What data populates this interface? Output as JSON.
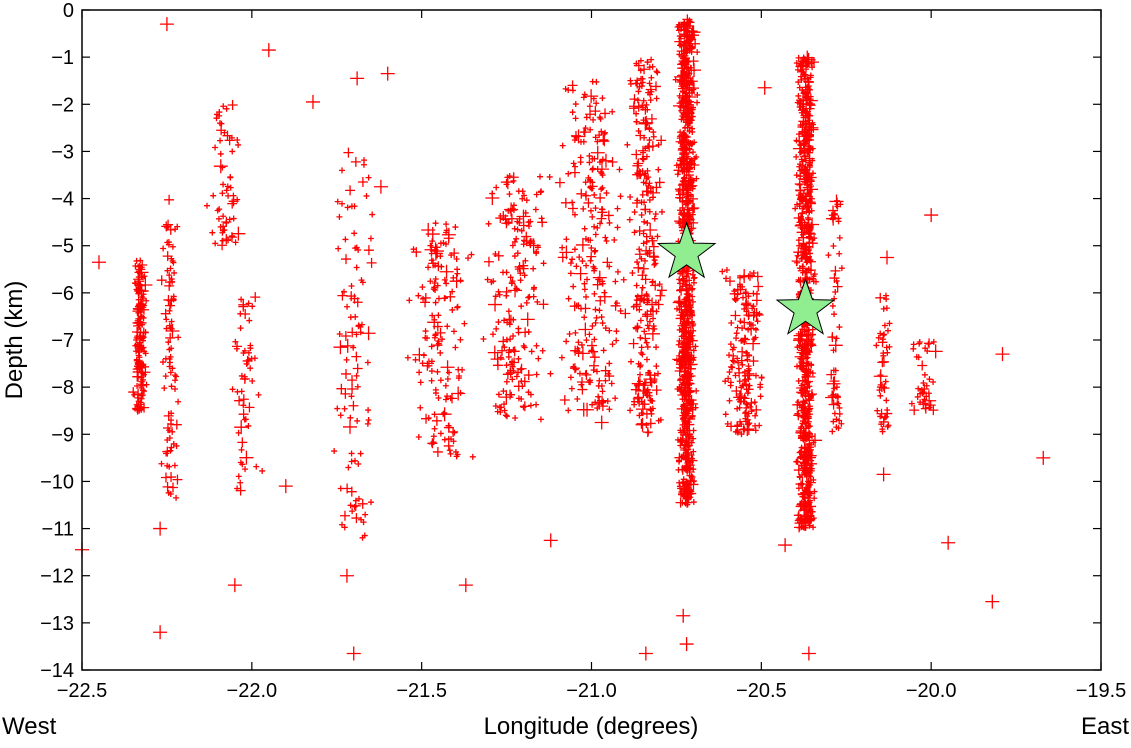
{
  "chart_data": {
    "type": "scatter",
    "title": "",
    "xlabel": "Longitude (degrees)",
    "ylabel": "Depth (km)",
    "xlim": [
      -22.5,
      -19.5
    ],
    "ylim": [
      -14,
      0
    ],
    "x_ticks": [
      -22.5,
      -22.0,
      -21.5,
      -21.0,
      -20.5,
      -20.0,
      -19.5
    ],
    "x_tick_labels": [
      "−22.5",
      "−22.0",
      "−21.5",
      "−21.0",
      "−20.5",
      "−20.0",
      "−19.5"
    ],
    "y_ticks": [
      0,
      -1,
      -2,
      -3,
      -4,
      -5,
      -6,
      -7,
      -8,
      -9,
      -10,
      -11,
      -12,
      -13,
      -14
    ],
    "y_tick_labels": [
      "0",
      "−1",
      "−2",
      "−3",
      "−4",
      "−5",
      "−6",
      "−7",
      "−8",
      "−9",
      "−10",
      "−11",
      "−12",
      "−13",
      "−14"
    ],
    "direction_labels": {
      "west": "West",
      "east": "East"
    },
    "grid": false,
    "legend": "none",
    "series": [
      {
        "marker": "plus",
        "color": "#ff0000",
        "clusters": [
          {
            "x": -22.33,
            "x_spread": 0.025,
            "y_min": -8.5,
            "y_max": -5.3,
            "count": 160
          },
          {
            "x": -22.24,
            "x_spread": 0.03,
            "y_min": -10.4,
            "y_max": -4.0,
            "count": 90
          },
          {
            "x": -22.08,
            "x_spread": 0.06,
            "y_min": -5.0,
            "y_max": -2.0,
            "count": 60
          },
          {
            "x": -22.02,
            "x_spread": 0.06,
            "y_min": -10.2,
            "y_max": -6.0,
            "count": 55
          },
          {
            "x": -21.7,
            "x_spread": 0.08,
            "y_min": -11.5,
            "y_max": -3.0,
            "count": 100
          },
          {
            "x": -21.45,
            "x_spread": 0.12,
            "y_min": -9.5,
            "y_max": -4.5,
            "count": 150
          },
          {
            "x": -21.22,
            "x_spread": 0.12,
            "y_min": -8.8,
            "y_max": -3.5,
            "count": 190
          },
          {
            "x": -21.0,
            "x_spread": 0.12,
            "y_min": -8.5,
            "y_max": -1.5,
            "count": 240
          },
          {
            "x": -20.84,
            "x_spread": 0.06,
            "y_min": -9.0,
            "y_max": -1.0,
            "count": 260
          },
          {
            "x": -20.72,
            "x_spread": 0.035,
            "y_min": -10.5,
            "y_max": -0.2,
            "count": 900
          },
          {
            "x": -20.55,
            "x_spread": 0.08,
            "y_min": -9.0,
            "y_max": -5.5,
            "count": 170
          },
          {
            "x": -20.37,
            "x_spread": 0.035,
            "y_min": -11.0,
            "y_max": -1.0,
            "count": 800
          },
          {
            "x": -20.28,
            "x_spread": 0.03,
            "y_min": -9.0,
            "y_max": -4.0,
            "count": 60
          },
          {
            "x": -20.14,
            "x_spread": 0.03,
            "y_min": -9.0,
            "y_max": -6.0,
            "count": 45
          },
          {
            "x": -20.02,
            "x_spread": 0.05,
            "y_min": -8.5,
            "y_max": -7.0,
            "count": 40
          }
        ],
        "isolated_points": [
          {
            "x": -22.5,
            "y": -11.45
          },
          {
            "x": -22.25,
            "y": -0.3
          },
          {
            "x": -22.27,
            "y": -13.2
          },
          {
            "x": -22.27,
            "y": -11.0
          },
          {
            "x": -22.05,
            "y": -12.2
          },
          {
            "x": -21.95,
            "y": -0.85
          },
          {
            "x": -21.9,
            "y": -10.1
          },
          {
            "x": -21.82,
            "y": -1.95
          },
          {
            "x": -21.7,
            "y": -13.65
          },
          {
            "x": -21.72,
            "y": -12.0
          },
          {
            "x": -21.69,
            "y": -1.45
          },
          {
            "x": -21.62,
            "y": -3.75
          },
          {
            "x": -21.6,
            "y": -1.35
          },
          {
            "x": -21.37,
            "y": -12.2
          },
          {
            "x": -21.12,
            "y": -11.25
          },
          {
            "x": -20.97,
            "y": -8.75
          },
          {
            "x": -20.84,
            "y": -13.65
          },
          {
            "x": -20.73,
            "y": -12.85
          },
          {
            "x": -20.72,
            "y": -13.45
          },
          {
            "x": -20.49,
            "y": -1.65
          },
          {
            "x": -20.43,
            "y": -11.35
          },
          {
            "x": -20.36,
            "y": -13.65
          },
          {
            "x": -20.14,
            "y": -9.85
          },
          {
            "x": -20.0,
            "y": -4.35
          },
          {
            "x": -19.95,
            "y": -11.3
          },
          {
            "x": -19.82,
            "y": -12.55
          },
          {
            "x": -19.79,
            "y": -7.3
          },
          {
            "x": -19.67,
            "y": -9.5
          },
          {
            "x": -20.13,
            "y": -5.25
          },
          {
            "x": -22.45,
            "y": -5.35
          }
        ]
      },
      {
        "marker": "star",
        "color": "#90ee90",
        "points": [
          {
            "x": -20.72,
            "y": -5.15
          },
          {
            "x": -20.37,
            "y": -6.35
          }
        ]
      }
    ]
  }
}
